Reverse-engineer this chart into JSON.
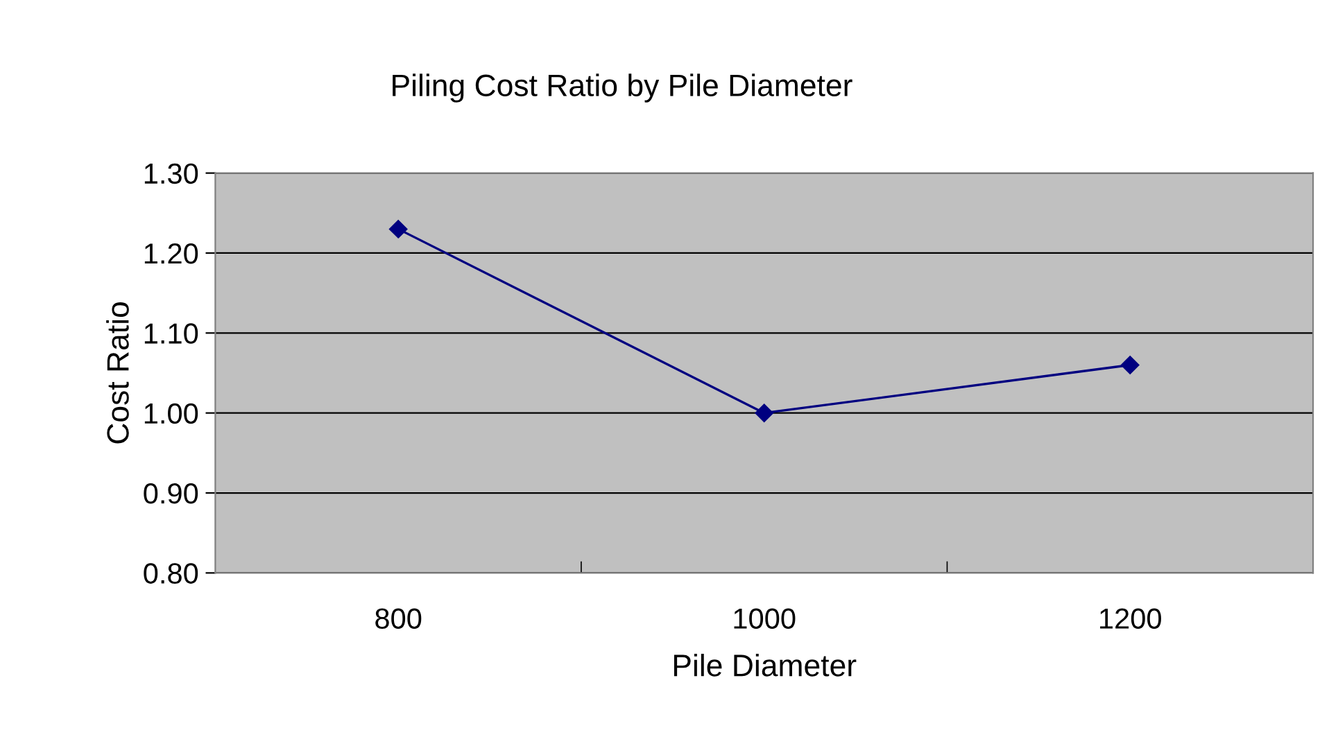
{
  "chart_data": {
    "type": "line",
    "title": "Piling Cost Ratio by Pile Diameter",
    "xlabel": "Pile Diameter",
    "ylabel": "Cost Ratio",
    "categories": [
      "800",
      "1000",
      "1200"
    ],
    "series": [
      {
        "color": "#000080",
        "values": [
          1.23,
          1.0,
          1.06
        ]
      }
    ],
    "ylim": [
      0.8,
      1.3
    ],
    "yticks": [
      {
        "value": 0.8,
        "label": "0.80"
      },
      {
        "value": 0.9,
        "label": "0.90"
      },
      {
        "value": 1.0,
        "label": "1.00"
      },
      {
        "value": 1.1,
        "label": "1.10"
      },
      {
        "value": 1.2,
        "label": "1.20"
      },
      {
        "value": 1.3,
        "label": "1.30"
      }
    ],
    "grid": "y",
    "marker": "diamond",
    "line_style": "solid"
  }
}
